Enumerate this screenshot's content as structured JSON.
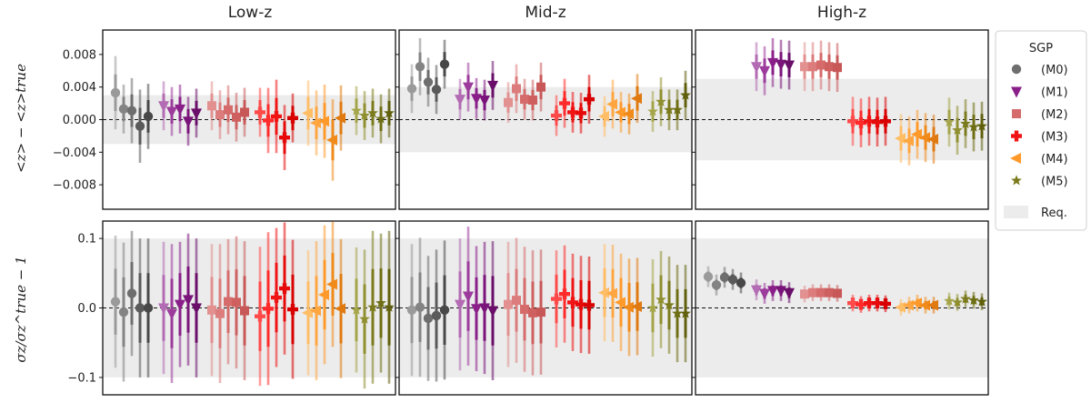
{
  "chart_data": {
    "type": "errorbar-scatter",
    "panel_titles": [
      "Low-z",
      "Mid-z",
      "High-z"
    ],
    "rows": [
      {
        "ylabel": "<z> − <z>true",
        "ylim": [
          -0.011,
          0.011
        ],
        "yticks": [
          0.008,
          0.004,
          0.0,
          -0.004,
          -0.008
        ],
        "ytick_labels": [
          "0.008",
          "0.004",
          "0.000",
          "−0.004",
          "−0.008"
        ]
      },
      {
        "ylabel": "σz/σz^true − 1",
        "ylim": [
          -0.125,
          0.125
        ],
        "yticks": [
          0.1,
          0.0,
          -0.1
        ],
        "ytick_labels": [
          "0.1",
          "0.0",
          "−0.1"
        ]
      }
    ],
    "requirement_band": {
      "row0": [
        [
          -0.003,
          0.003
        ],
        [
          -0.004,
          0.004
        ],
        [
          -0.005,
          0.005
        ]
      ],
      "row1": [
        [
          -0.1,
          0.1
        ],
        [
          -0.1,
          0.1
        ],
        [
          -0.1,
          0.1
        ]
      ]
    },
    "legend": {
      "title": "SGP",
      "entries": [
        "(M0)",
        "(M1)",
        "(M2)",
        "(M3)",
        "(M4)",
        "(M5)"
      ],
      "band_label": "Req.",
      "placement": "right"
    },
    "series": [
      {
        "name": "(M0)",
        "marker": "circle",
        "colors": [
          "#9a9a9a",
          "#848484",
          "#6e6e6e",
          "#5a5a5a",
          "#484848"
        ]
      },
      {
        "name": "(M1)",
        "marker": "triangle-down",
        "colors": [
          "#b36bb3",
          "#9c3b9c",
          "#8a1f8a",
          "#7a147a",
          "#6a0e6a"
        ]
      },
      {
        "name": "(M2)",
        "marker": "square",
        "colors": [
          "#e29090",
          "#dc7c7c",
          "#d56b6b",
          "#cf6060",
          "#c85858"
        ]
      },
      {
        "name": "(M3)",
        "marker": "plus",
        "colors": [
          "#ff4a4a",
          "#ff2a2a",
          "#f01414",
          "#e60a0a",
          "#d80000"
        ]
      },
      {
        "name": "(M4)",
        "marker": "triangle-left",
        "colors": [
          "#ffbd66",
          "#ffa640",
          "#ff9a2a",
          "#f08a1a",
          "#e07a10"
        ]
      },
      {
        "name": "(M5)",
        "marker": "star",
        "colors": [
          "#a5a54a",
          "#8f8f30",
          "#7b7b1e",
          "#6e6e14",
          "#60600c"
        ]
      }
    ],
    "data": {
      "mean": {
        "Low-z": {
          "(M0)": [
            [
              0.0033,
              0.0045
            ],
            [
              0.0013,
              0.003
            ],
            [
              0.0011,
              0.004
            ],
            [
              -0.0008,
              0.0045
            ],
            [
              0.0004,
              0.004
            ]
          ],
          "(M1)": [
            [
              0.0017,
              0.003
            ],
            [
              0.001,
              0.003
            ],
            [
              0.0013,
              0.003
            ],
            [
              -0.0002,
              0.003
            ],
            [
              0.0008,
              0.003
            ]
          ],
          "(M2)": [
            [
              0.0017,
              0.003
            ],
            [
              0.0006,
              0.003
            ],
            [
              0.0012,
              0.003
            ],
            [
              0.0003,
              0.003
            ],
            [
              0.0009,
              0.003
            ]
          ],
          "(M3)": [
            [
              0.0009,
              0.003
            ],
            [
              -0.0001,
              0.004
            ],
            [
              0.0004,
              0.0045
            ],
            [
              -0.0022,
              0.004
            ],
            [
              0.0002,
              0.003
            ]
          ],
          "(M4)": [
            [
              0.0008,
              0.004
            ],
            [
              -0.0004,
              0.004
            ],
            [
              -0.0002,
              0.0045
            ],
            [
              -0.0025,
              0.005
            ],
            [
              0.0002,
              0.004
            ]
          ],
          "(M5)": [
            [
              0.0011,
              0.003
            ],
            [
              0.0005,
              0.003
            ],
            [
              0.0008,
              0.003
            ],
            [
              0.0001,
              0.003
            ],
            [
              0.0008,
              0.003
            ]
          ]
        },
        "Mid-z": {
          "(M0)": [
            [
              0.0038,
              0.003
            ],
            [
              0.0065,
              0.0035
            ],
            [
              0.0046,
              0.003
            ],
            [
              0.0037,
              0.003
            ],
            [
              0.0068,
              0.003
            ]
          ],
          "(M1)": [
            [
              0.0025,
              0.0025
            ],
            [
              0.004,
              0.003
            ],
            [
              0.0026,
              0.0025
            ],
            [
              0.0024,
              0.0025
            ],
            [
              0.0042,
              0.003
            ]
          ],
          "(M2)": [
            [
              0.0021,
              0.0025
            ],
            [
              0.0038,
              0.003
            ],
            [
              0.0025,
              0.0025
            ],
            [
              0.0024,
              0.0025
            ],
            [
              0.004,
              0.003
            ]
          ],
          "(M3)": [
            [
              0.0005,
              0.0025
            ],
            [
              0.002,
              0.003
            ],
            [
              0.0009,
              0.0025
            ],
            [
              0.0008,
              0.0025
            ],
            [
              0.0025,
              0.003
            ]
          ],
          "(M4)": [
            [
              0.0004,
              0.0025
            ],
            [
              0.0019,
              0.003
            ],
            [
              0.0009,
              0.0025
            ],
            [
              0.0007,
              0.0025
            ],
            [
              0.0026,
              0.003
            ]
          ],
          "(M5)": [
            [
              0.001,
              0.0025
            ],
            [
              0.0022,
              0.003
            ],
            [
              0.0012,
              0.0025
            ],
            [
              0.0012,
              0.0025
            ],
            [
              0.003,
              0.003
            ]
          ]
        },
        "High-z": {
          "(M0)": [],
          "(M1)": [
            [
              0.0065,
              0.003
            ],
            [
              0.006,
              0.003
            ],
            [
              0.007,
              0.003
            ],
            [
              0.0068,
              0.003
            ],
            [
              0.0067,
              0.003
            ]
          ],
          "(M2)": [
            [
              0.0065,
              0.003
            ],
            [
              0.0065,
              0.003
            ],
            [
              0.0067,
              0.003
            ],
            [
              0.0065,
              0.003
            ],
            [
              0.0064,
              0.003
            ]
          ],
          "(M3)": [
            [
              -0.0002,
              0.003
            ],
            [
              -0.0004,
              0.003
            ],
            [
              -0.0002,
              0.003
            ],
            [
              -0.0003,
              0.003
            ],
            [
              -0.0002,
              0.003
            ]
          ],
          "(M4)": [
            [
              -0.0023,
              0.003
            ],
            [
              -0.0026,
              0.003
            ],
            [
              -0.0018,
              0.003
            ],
            [
              -0.0022,
              0.003
            ],
            [
              -0.0024,
              0.003
            ]
          ],
          "(M5)": [
            [
              -0.0003,
              0.003
            ],
            [
              -0.0013,
              0.003
            ],
            [
              -0.0005,
              0.003
            ],
            [
              -0.0009,
              0.003
            ],
            [
              -0.0008,
              0.003
            ]
          ]
        }
      },
      "width": {
        "Low-z": {
          "(M0)": [
            [
              0.009,
              0.095
            ],
            [
              -0.006,
              0.1
            ],
            [
              0.021,
              0.09
            ],
            [
              0.0,
              0.1
            ],
            [
              0.0,
              0.1
            ]
          ],
          "(M1)": [
            [
              0.0,
              0.095
            ],
            [
              -0.008,
              0.1
            ],
            [
              0.005,
              0.09
            ],
            [
              0.012,
              0.095
            ],
            [
              0.0,
              0.1
            ]
          ],
          "(M2)": [
            [
              -0.003,
              0.095
            ],
            [
              -0.008,
              0.1
            ],
            [
              0.009,
              0.09
            ],
            [
              0.008,
              0.095
            ],
            [
              -0.004,
              0.1
            ]
          ],
          "(M3)": [
            [
              -0.012,
              0.1
            ],
            [
              -0.001,
              0.11
            ],
            [
              0.015,
              0.1
            ],
            [
              0.028,
              0.095
            ],
            [
              -0.002,
              0.1
            ]
          ],
          "(M4)": [
            [
              -0.007,
              0.09
            ],
            [
              -0.004,
              0.1
            ],
            [
              0.019,
              0.1
            ],
            [
              0.034,
              0.09
            ],
            [
              -0.001,
              0.1
            ]
          ],
          "(M5)": [
            [
              -0.003,
              0.09
            ],
            [
              -0.016,
              0.1
            ],
            [
              0.001,
              0.11
            ],
            [
              0.007,
              0.1
            ],
            [
              0.001,
              0.11
            ]
          ]
        },
        "Mid-z": {
          "(M0)": [
            [
              -0.003,
              0.095
            ],
            [
              0.001,
              0.1
            ],
            [
              -0.015,
              0.09
            ],
            [
              -0.011,
              0.095
            ],
            [
              -0.003,
              0.1
            ]
          ],
          "(M1)": [
            [
              0.005,
              0.095
            ],
            [
              0.017,
              0.1
            ],
            [
              -0.001,
              0.09
            ],
            [
              0.0,
              0.095
            ],
            [
              -0.004,
              0.1
            ]
          ],
          "(M2)": [
            [
              0.005,
              0.09
            ],
            [
              0.011,
              0.09
            ],
            [
              -0.002,
              0.09
            ],
            [
              -0.007,
              0.09
            ],
            [
              -0.006,
              0.09
            ]
          ],
          "(M3)": [
            [
              0.013,
              0.07
            ],
            [
              0.02,
              0.07
            ],
            [
              0.008,
              0.07
            ],
            [
              0.005,
              0.07
            ],
            [
              0.004,
              0.07
            ]
          ],
          "(M4)": [
            [
              0.022,
              0.07
            ],
            [
              0.021,
              0.07
            ],
            [
              0.008,
              0.07
            ],
            [
              0.001,
              0.07
            ],
            [
              0.002,
              0.07
            ]
          ],
          "(M5)": [
            [
              0.0,
              0.07
            ],
            [
              0.012,
              0.07
            ],
            [
              0.004,
              0.07
            ],
            [
              -0.008,
              0.07
            ],
            [
              -0.008,
              0.07
            ]
          ]
        },
        "High-z": {
          "(M0)": [
            [
              0.045,
              0.015
            ],
            [
              0.033,
              0.015
            ],
            [
              0.044,
              0.015
            ],
            [
              0.041,
              0.015
            ],
            [
              0.036,
              0.015
            ]
          ],
          "(M1)": [
            [
              0.026,
              0.015
            ],
            [
              0.021,
              0.015
            ],
            [
              0.025,
              0.015
            ],
            [
              0.025,
              0.015
            ],
            [
              0.022,
              0.015
            ]
          ],
          "(M2)": [
            [
              0.02,
              0.012
            ],
            [
              0.022,
              0.012
            ],
            [
              0.022,
              0.012
            ],
            [
              0.022,
              0.012
            ],
            [
              0.021,
              0.012
            ]
          ],
          "(M3)": [
            [
              0.007,
              0.012
            ],
            [
              0.005,
              0.012
            ],
            [
              0.007,
              0.012
            ],
            [
              0.007,
              0.012
            ],
            [
              0.006,
              0.012
            ]
          ],
          "(M4)": [
            [
              0.001,
              0.012
            ],
            [
              0.004,
              0.012
            ],
            [
              0.007,
              0.012
            ],
            [
              0.004,
              0.012
            ],
            [
              0.004,
              0.012
            ]
          ],
          "(M5)": [
            [
              0.01,
              0.012
            ],
            [
              0.008,
              0.012
            ],
            [
              0.013,
              0.012
            ],
            [
              0.011,
              0.012
            ],
            [
              0.009,
              0.012
            ]
          ]
        }
      }
    }
  }
}
